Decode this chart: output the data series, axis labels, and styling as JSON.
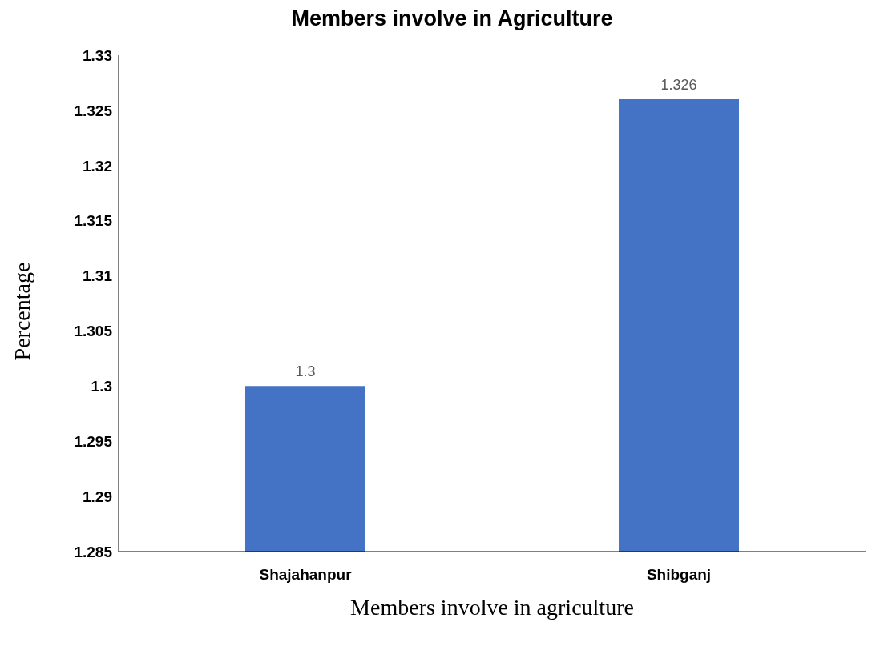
{
  "chart_data": {
    "type": "bar",
    "title": "Members involve in Agriculture",
    "xlabel": "Members involve in agriculture",
    "ylabel": "Percentage",
    "categories": [
      "Shajahanpur",
      "Shibganj"
    ],
    "values": [
      1.3,
      1.326
    ],
    "color": "#4472c4",
    "ylim": [
      1.285,
      1.33
    ],
    "yticks": [
      1.285,
      1.29,
      1.295,
      1.3,
      1.305,
      1.31,
      1.315,
      1.32,
      1.325,
      1.33
    ],
    "grid": false,
    "data_labels": true,
    "legend": false
  }
}
